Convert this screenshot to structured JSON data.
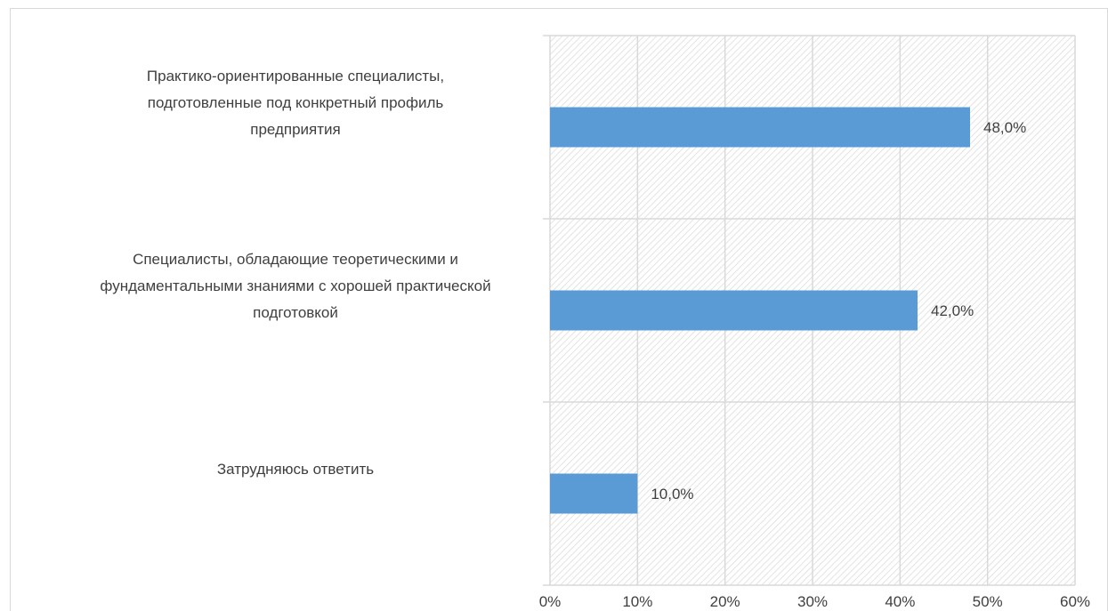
{
  "chart_data": {
    "type": "bar",
    "orientation": "horizontal",
    "title": "",
    "xlabel": "",
    "ylabel": "",
    "categories": [
      "Практико-ориентированные специалисты, подготовленные под конкретный профиль предприятия",
      "Специалисты, обладающие теоретическими и фундаментальными знаниями с хорошей практической подготовкой",
      "Затрудняюсь ответить"
    ],
    "category_lines": [
      [
        "Практико-ориентированные специалисты,",
        "подготовленные под конкретный профиль",
        "предприятия"
      ],
      [
        "Специалисты, обладающие теоретическими и",
        "фундаментальными знаниями с хорошей практической",
        "подготовкой"
      ],
      [
        "Затрудняюсь ответить"
      ]
    ],
    "values": [
      48.0,
      42.0,
      10.0
    ],
    "data_labels": [
      "48,0%",
      "42,0%",
      "10,0%"
    ],
    "xlim": [
      0,
      60
    ],
    "x_ticks": [
      0,
      10,
      20,
      30,
      40,
      50,
      60
    ],
    "x_tick_labels": [
      "0%",
      "10%",
      "20%",
      "30%",
      "40%",
      "50%",
      "60%"
    ],
    "grid": true,
    "plot_background": "hatched",
    "legend": "none",
    "colors": {
      "bar": "#5b9bd5",
      "grid": "#d9d9d9",
      "hatch": "#dcdcdc",
      "text": "#3f3f3f"
    }
  }
}
